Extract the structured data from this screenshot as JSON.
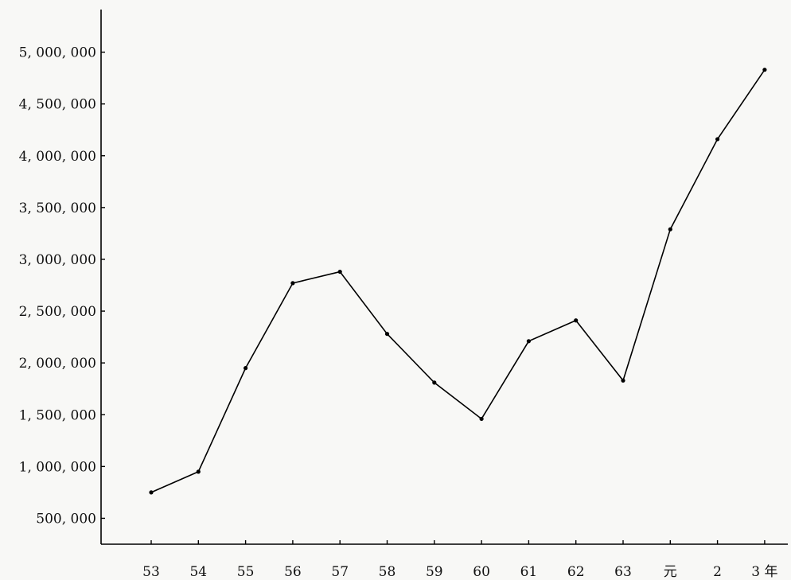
{
  "chart_data": {
    "type": "line",
    "title": "",
    "xlabel": "",
    "ylabel": "",
    "categories": [
      "53",
      "54",
      "55",
      "56",
      "57",
      "58",
      "59",
      "60",
      "61",
      "62",
      "63",
      "元",
      "2",
      "3 年"
    ],
    "series": [
      {
        "values": [
          750000,
          950000,
          1950000,
          2770000,
          2880000,
          2280000,
          1810000,
          1460000,
          2210000,
          2410000,
          1830000,
          3290000,
          4160000,
          4830000
        ]
      }
    ],
    "y_ticks": [
      500000,
      1000000,
      1500000,
      2000000,
      2500000,
      3000000,
      3500000,
      4000000,
      4500000,
      5000000
    ],
    "y_tick_labels": [
      "500, 000",
      "1, 000, 000",
      "1, 500, 000",
      "2, 000, 000",
      "2, 500, 000",
      "3, 000, 000",
      "3, 500, 000",
      "4, 000, 000",
      "4, 500, 000",
      "5, 000, 000"
    ],
    "grid": false,
    "line_color": "#000000"
  }
}
